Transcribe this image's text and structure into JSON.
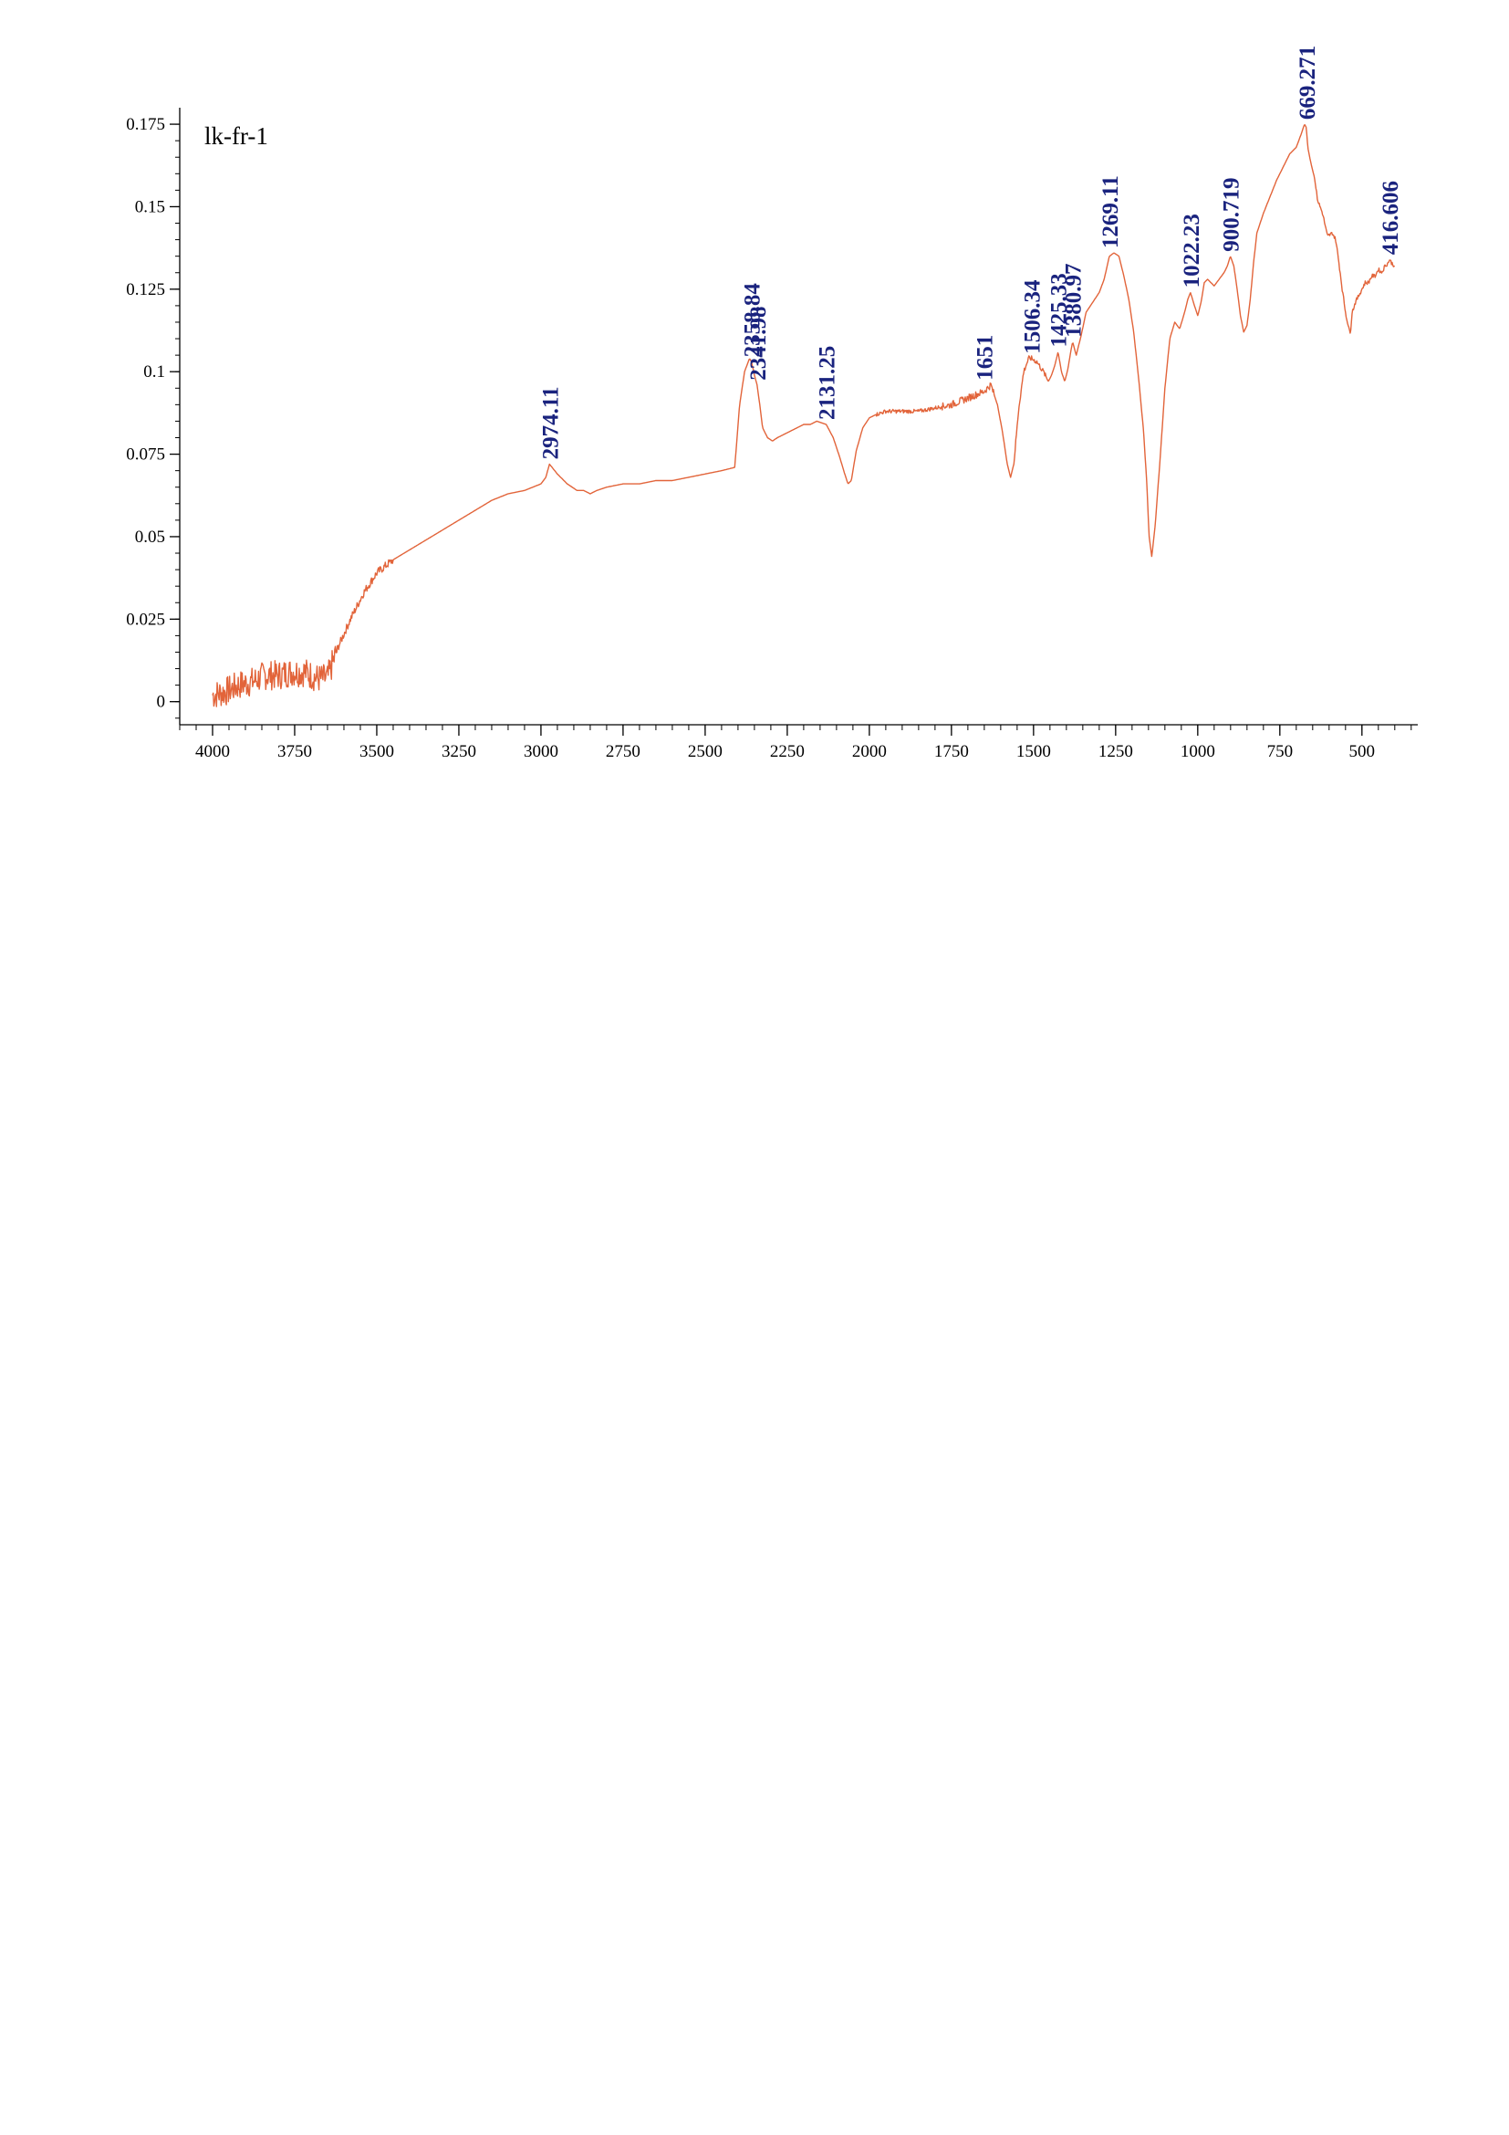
{
  "chart_data": {
    "type": "line",
    "title": "lk-fr-1",
    "xlabel": "",
    "ylabel": "",
    "x_reversed": true,
    "xlim": [
      4100,
      330
    ],
    "ylim": [
      -0.007,
      0.18
    ],
    "grid": false,
    "colors": {
      "line": "#e2643a",
      "peak_labels": "#1a237e",
      "axes": "#000000"
    },
    "x_ticks": [
      {
        "value": 4000,
        "label": "4000"
      },
      {
        "value": 3750,
        "label": "3750"
      },
      {
        "value": 3500,
        "label": "3500"
      },
      {
        "value": 3250,
        "label": "3250"
      },
      {
        "value": 3000,
        "label": "3000"
      },
      {
        "value": 2750,
        "label": "2750"
      },
      {
        "value": 2500,
        "label": "2500"
      },
      {
        "value": 2250,
        "label": "2250"
      },
      {
        "value": 2000,
        "label": "2000"
      },
      {
        "value": 1750,
        "label": "1750"
      },
      {
        "value": 1500,
        "label": "1500"
      },
      {
        "value": 1250,
        "label": "1250"
      },
      {
        "value": 1000,
        "label": "1000"
      },
      {
        "value": 750,
        "label": "750"
      },
      {
        "value": 500,
        "label": "500"
      }
    ],
    "y_ticks": [
      {
        "value": 0,
        "label": "0"
      },
      {
        "value": 0.025,
        "label": "0.025"
      },
      {
        "value": 0.05,
        "label": "0.05"
      },
      {
        "value": 0.075,
        "label": "0.075"
      },
      {
        "value": 0.1,
        "label": "0.1"
      },
      {
        "value": 0.125,
        "label": "0.125"
      },
      {
        "value": 0.15,
        "label": "0.15"
      },
      {
        "value": 0.175,
        "label": "0.175"
      }
    ],
    "series": [
      {
        "x": [
          4000,
          3960,
          3920,
          3880,
          3840,
          3800,
          3760,
          3720,
          3680,
          3650,
          3620,
          3580,
          3540,
          3500,
          3450,
          3400,
          3350,
          3300,
          3250,
          3200,
          3150,
          3100,
          3050,
          3000,
          2985,
          2974.11,
          2950,
          2920,
          2890,
          2870,
          2850,
          2830,
          2800,
          2750,
          2700,
          2650,
          2600,
          2550,
          2500,
          2450,
          2410,
          2395,
          2380,
          2365,
          2358.84,
          2350,
          2341.98,
          2335,
          2325,
          2310,
          2295,
          2280,
          2260,
          2240,
          2220,
          2200,
          2180,
          2160,
          2131.25,
          2110,
          2090,
          2075,
          2065,
          2055,
          2040,
          2020,
          2000,
          1980,
          1950,
          1900,
          1850,
          1800,
          1750,
          1700,
          1651,
          1630,
          1610,
          1595,
          1580,
          1570,
          1560,
          1545,
          1530,
          1515,
          1506.34,
          1490,
          1470,
          1455,
          1445,
          1435,
          1425.33,
          1415,
          1405,
          1395,
          1387,
          1380.97,
          1370,
          1355,
          1340,
          1320,
          1300,
          1285,
          1269.11,
          1255,
          1240,
          1225,
          1210,
          1195,
          1180,
          1165,
          1155,
          1148,
          1140,
          1130,
          1115,
          1100,
          1085,
          1070,
          1055,
          1040,
          1030,
          1022.23,
          1010,
          1000,
          990,
          980,
          970,
          960,
          950,
          935,
          920,
          910,
          900.719,
          890,
          880,
          870,
          860,
          850,
          840,
          830,
          820,
          800,
          780,
          760,
          740,
          720,
          700,
          685,
          675,
          669.271,
          665,
          655,
          645,
          635,
          620,
          605,
          590,
          580,
          570,
          560,
          550,
          540,
          535,
          530,
          520,
          510,
          500,
          490,
          480,
          470,
          460,
          450,
          440,
          430,
          420,
          416.606,
          410,
          400
        ],
        "y": [
          0.002,
          0.003,
          0.005,
          0.006,
          0.008,
          0.008,
          0.009,
          0.009,
          0.007,
          0.007,
          0.016,
          0.025,
          0.033,
          0.039,
          0.043,
          0.046,
          0.049,
          0.052,
          0.055,
          0.058,
          0.061,
          0.063,
          0.064,
          0.066,
          0.068,
          0.072,
          0.069,
          0.066,
          0.064,
          0.064,
          0.063,
          0.064,
          0.065,
          0.066,
          0.066,
          0.067,
          0.067,
          0.068,
          0.069,
          0.07,
          0.071,
          0.09,
          0.1,
          0.104,
          0.103,
          0.099,
          0.096,
          0.091,
          0.083,
          0.08,
          0.079,
          0.08,
          0.081,
          0.082,
          0.083,
          0.084,
          0.084,
          0.085,
          0.084,
          0.08,
          0.074,
          0.069,
          0.066,
          0.067,
          0.076,
          0.083,
          0.086,
          0.087,
          0.088,
          0.088,
          0.088,
          0.089,
          0.09,
          0.092,
          0.094,
          0.096,
          0.09,
          0.082,
          0.072,
          0.068,
          0.072,
          0.089,
          0.1,
          0.104,
          0.104,
          0.103,
          0.1,
          0.097,
          0.099,
          0.102,
          0.106,
          0.1,
          0.097,
          0.101,
          0.106,
          0.109,
          0.105,
          0.111,
          0.118,
          0.121,
          0.124,
          0.128,
          0.135,
          0.136,
          0.135,
          0.129,
          0.122,
          0.112,
          0.098,
          0.082,
          0.066,
          0.05,
          0.044,
          0.053,
          0.073,
          0.095,
          0.11,
          0.115,
          0.113,
          0.118,
          0.122,
          0.124,
          0.12,
          0.117,
          0.121,
          0.127,
          0.128,
          0.127,
          0.126,
          0.128,
          0.13,
          0.132,
          0.135,
          0.132,
          0.125,
          0.117,
          0.112,
          0.114,
          0.122,
          0.133,
          0.142,
          0.148,
          0.153,
          0.158,
          0.162,
          0.166,
          0.168,
          0.172,
          0.175,
          0.174,
          0.168,
          0.163,
          0.159,
          0.152,
          0.148,
          0.141,
          0.142,
          0.14,
          0.133,
          0.125,
          0.118,
          0.113,
          0.112,
          0.118,
          0.121,
          0.123,
          0.125,
          0.127,
          0.127,
          0.129,
          0.129,
          0.131,
          0.13,
          0.132,
          0.133,
          0.134,
          0.133,
          0.132
        ]
      }
    ],
    "peaks": [
      {
        "x": 2974.11,
        "y": 0.072,
        "label": "2974.11"
      },
      {
        "x": 2358.84,
        "y": 0.103,
        "label": "2358.84"
      },
      {
        "x": 2341.98,
        "y": 0.096,
        "label": "2341.98"
      },
      {
        "x": 2131.25,
        "y": 0.084,
        "label": "2131.25"
      },
      {
        "x": 1651,
        "y": 0.096,
        "label": "1651"
      },
      {
        "x": 1506.34,
        "y": 0.104,
        "label": "1506.34"
      },
      {
        "x": 1425.33,
        "y": 0.106,
        "label": "1425.33"
      },
      {
        "x": 1380.97,
        "y": 0.109,
        "label": "1380.97"
      },
      {
        "x": 1269.11,
        "y": 0.136,
        "label": "1269.11"
      },
      {
        "x": 1022.23,
        "y": 0.124,
        "label": "1022.23"
      },
      {
        "x": 900.719,
        "y": 0.135,
        "label": "900.719"
      },
      {
        "x": 669.271,
        "y": 0.175,
        "label": "669.271"
      },
      {
        "x": 416.606,
        "y": 0.134,
        "label": "416.606"
      }
    ]
  }
}
